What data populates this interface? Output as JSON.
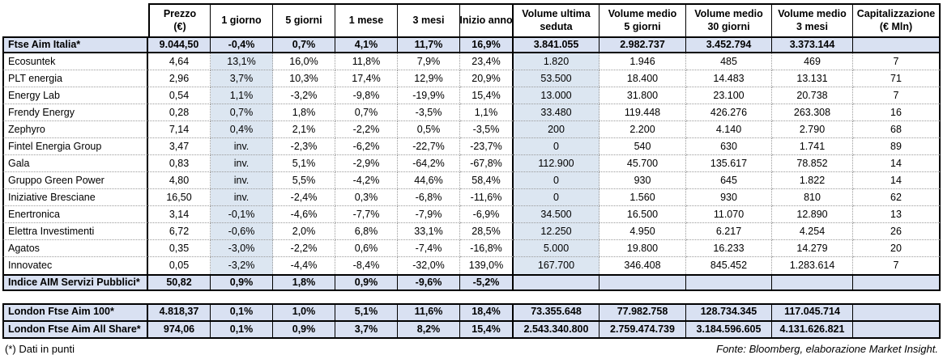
{
  "colors": {
    "indexbg": "#D9E1F2",
    "shade": "#DCE6F1",
    "border": "#000000"
  },
  "header": {
    "columns": [
      {
        "l1": "Prezzo",
        "l2": "(€)"
      },
      {
        "l1": "1 giorno",
        "l2": ""
      },
      {
        "l1": "5 giorni",
        "l2": ""
      },
      {
        "l1": "1 mese",
        "l2": ""
      },
      {
        "l1": "3 mesi",
        "l2": ""
      },
      {
        "l1": "Inizio anno",
        "l2": ""
      },
      {
        "l1": "Volume ultima",
        "l2": "seduta"
      },
      {
        "l1": "Volume medio",
        "l2": "5 giorni"
      },
      {
        "l1": "Volume medio",
        "l2": "30 giorni"
      },
      {
        "l1": "Volume medio",
        "l2": "3 mesi"
      },
      {
        "l1": "Capitalizzazione",
        "l2": "(€ Mln)"
      }
    ]
  },
  "chart_data": {
    "type": "table",
    "title": "",
    "column_headers": [
      "",
      "Prezzo (€)",
      "1 giorno",
      "5 giorni",
      "1 mese",
      "3 mesi",
      "Inizio anno",
      "Volume ultima seduta",
      "Volume medio 5 giorni",
      "Volume medio 30 giorni",
      "Volume medio 3 mesi",
      "Capitalizzazione (€ Mln)"
    ],
    "main_table": {
      "rows": [
        {
          "name": "Ftse Aim Italia*",
          "type": "index",
          "values": [
            "9.044,50",
            "-0,4%",
            "0,7%",
            "4,1%",
            "11,7%",
            "16,9%",
            "3.841.055",
            "2.982.737",
            "3.452.794",
            "3.373.144",
            ""
          ]
        },
        {
          "name": "Ecosuntek",
          "type": "stock",
          "values": [
            "4,64",
            "13,1%",
            "16,0%",
            "11,8%",
            "7,9%",
            "23,4%",
            "1.820",
            "1.946",
            "485",
            "469",
            "7"
          ]
        },
        {
          "name": "PLT energia",
          "type": "stock",
          "values": [
            "2,96",
            "3,7%",
            "10,3%",
            "17,4%",
            "12,9%",
            "20,9%",
            "53.500",
            "18.400",
            "14.483",
            "13.131",
            "71"
          ]
        },
        {
          "name": "Energy Lab",
          "type": "stock",
          "values": [
            "0,54",
            "1,1%",
            "-3,2%",
            "-9,8%",
            "-19,9%",
            "15,4%",
            "13.000",
            "31.800",
            "23.100",
            "20.738",
            "7"
          ]
        },
        {
          "name": "Frendy Energy",
          "type": "stock",
          "values": [
            "0,28",
            "0,7%",
            "1,8%",
            "0,7%",
            "-3,5%",
            "1,1%",
            "33.480",
            "119.448",
            "426.276",
            "263.308",
            "16"
          ]
        },
        {
          "name": "Zephyro",
          "type": "stock",
          "values": [
            "7,14",
            "0,4%",
            "2,1%",
            "-2,2%",
            "0,5%",
            "-3,5%",
            "200",
            "2.200",
            "4.140",
            "2.790",
            "68"
          ]
        },
        {
          "name": "Fintel Energia Group",
          "type": "stock",
          "values": [
            "3,47",
            "inv.",
            "-2,3%",
            "-6,2%",
            "-22,7%",
            "-23,7%",
            "0",
            "540",
            "630",
            "1.741",
            "89"
          ]
        },
        {
          "name": "Gala",
          "type": "stock",
          "values": [
            "0,83",
            "inv.",
            "5,1%",
            "-2,9%",
            "-64,2%",
            "-67,8%",
            "112.900",
            "45.700",
            "135.617",
            "78.852",
            "14"
          ]
        },
        {
          "name": "Gruppo Green Power",
          "type": "stock",
          "values": [
            "4,80",
            "inv.",
            "5,5%",
            "-4,2%",
            "44,6%",
            "58,4%",
            "0",
            "930",
            "645",
            "1.822",
            "14"
          ]
        },
        {
          "name": "Iniziative Bresciane",
          "type": "stock",
          "values": [
            "16,50",
            "inv.",
            "-2,4%",
            "0,3%",
            "-6,8%",
            "-11,6%",
            "0",
            "1.560",
            "930",
            "810",
            "62"
          ]
        },
        {
          "name": "Enertronica",
          "type": "stock",
          "values": [
            "3,14",
            "-0,1%",
            "-4,6%",
            "-7,7%",
            "-7,9%",
            "-6,9%",
            "34.500",
            "16.500",
            "11.070",
            "12.890",
            "13"
          ]
        },
        {
          "name": "Elettra Investimenti",
          "type": "stock",
          "values": [
            "6,72",
            "-0,6%",
            "2,0%",
            "6,8%",
            "33,1%",
            "28,5%",
            "12.250",
            "4.950",
            "6.217",
            "4.254",
            "26"
          ]
        },
        {
          "name": "Agatos",
          "type": "stock",
          "values": [
            "0,35",
            "-3,0%",
            "-2,2%",
            "0,6%",
            "-7,4%",
            "-16,8%",
            "5.000",
            "19.800",
            "16.233",
            "14.279",
            "20"
          ]
        },
        {
          "name": "Innovatec",
          "type": "stock",
          "values": [
            "0,05",
            "-3,2%",
            "-4,4%",
            "-8,4%",
            "-32,0%",
            "139,0%",
            "167.700",
            "346.408",
            "845.452",
            "1.283.614",
            "7"
          ]
        },
        {
          "name": "Indice AIM Servizi Pubblici*",
          "type": "index",
          "values": [
            "50,82",
            "0,9%",
            "1,8%",
            "0,9%",
            "-9,6%",
            "-5,2%",
            "",
            "",
            "",
            "",
            ""
          ]
        }
      ]
    },
    "london_table": {
      "rows": [
        {
          "name": "London Ftse Aim 100*",
          "type": "index",
          "values": [
            "4.818,37",
            "0,1%",
            "1,0%",
            "5,1%",
            "11,6%",
            "18,4%",
            "73.355.648",
            "77.982.758",
            "128.734.345",
            "117.045.714",
            ""
          ]
        },
        {
          "name": "London Ftse Aim All Share*",
          "type": "index",
          "values": [
            "974,06",
            "0,1%",
            "0,9%",
            "3,7%",
            "8,2%",
            "15,4%",
            "2.543.340.800",
            "2.759.474.739",
            "3.184.596.605",
            "4.131.626.821",
            ""
          ]
        }
      ]
    }
  },
  "footer": {
    "note": "(*) Dati in punti",
    "source": "Fonte: Bloomberg, elaborazione Market Insight."
  }
}
